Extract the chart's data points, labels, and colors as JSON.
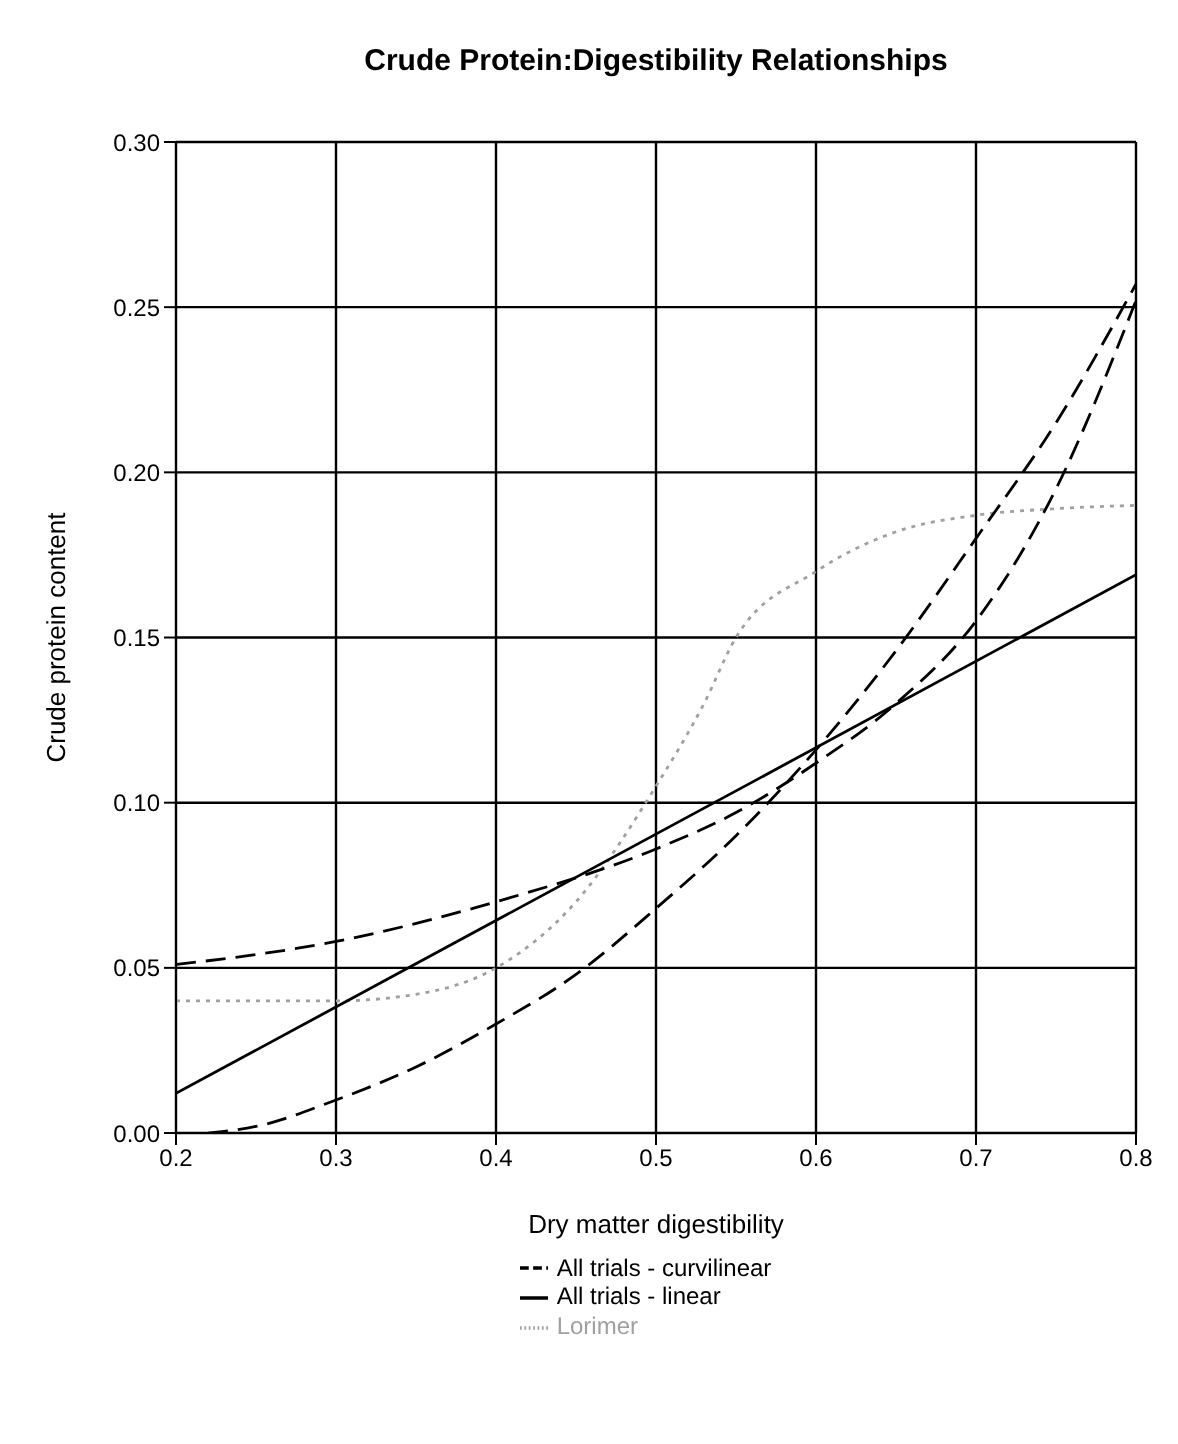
{
  "chart_data": {
    "type": "line",
    "title": "Crude Protein:Digestibility Relationships",
    "xlabel": "Dry matter digestibility",
    "ylabel": "Crude protein content",
    "xlim": [
      0.2,
      0.8
    ],
    "xticks": [
      0.2,
      0.3,
      0.4,
      0.5,
      0.6,
      0.7,
      0.8
    ],
    "ylim": [
      0,
      0.3
    ],
    "yticks": [
      {
        "value": 0,
        "label": "0.00"
      },
      {
        "value": 0.05,
        "label": "0.05"
      },
      {
        "value": 0.1,
        "label": "0.10"
      },
      {
        "value": 0.15,
        "label": "0.15"
      },
      {
        "value": 0.2,
        "label": "0.20"
      },
      {
        "value": 0.25,
        "label": "0.25"
      },
      {
        "value": 0.3,
        "label": "0.30"
      }
    ],
    "grid": true,
    "legend": "bottom",
    "marker": "none",
    "series": [
      {
        "name": "Lorimer",
        "color": "#a0a0a0",
        "line_style": "dotted",
        "x": [
          0.2,
          0.3,
          0.35,
          0.4,
          0.45,
          0.5,
          0.53,
          0.55,
          0.6,
          0.65,
          0.7,
          0.75,
          0.8
        ],
        "values": [
          0.04,
          0.04,
          0.042,
          0.05,
          0.07,
          0.105,
          0.13,
          0.15,
          0.17,
          0.182,
          0.187,
          0.189,
          0.19
        ]
      },
      {
        "color": "#000000",
        "line_style": "dashed",
        "x": [
          0.2,
          0.3,
          0.4,
          0.5,
          0.55,
          0.6,
          0.65,
          0.7,
          0.75,
          0.8
        ],
        "values": [
          0.051,
          0.058,
          0.07,
          0.086,
          0.097,
          0.112,
          0.13,
          0.155,
          0.195,
          0.252
        ]
      },
      {
        "name": "All trials - curvilinear",
        "color": "#000000",
        "line_style": "dashed",
        "x": [
          0.22,
          0.25,
          0.3,
          0.35,
          0.4,
          0.45,
          0.5,
          0.55,
          0.6,
          0.65,
          0.7,
          0.75,
          0.8
        ],
        "values": [
          0,
          0.002,
          0.01,
          0.02,
          0.033,
          0.048,
          0.068,
          0.09,
          0.116,
          0.146,
          0.18,
          0.215,
          0.257
        ]
      },
      {
        "name": "All trials - linear",
        "color": "#000000",
        "line_style": "solid",
        "x": [
          0.2,
          0.8
        ],
        "values": [
          0.012,
          0.169
        ]
      }
    ]
  }
}
